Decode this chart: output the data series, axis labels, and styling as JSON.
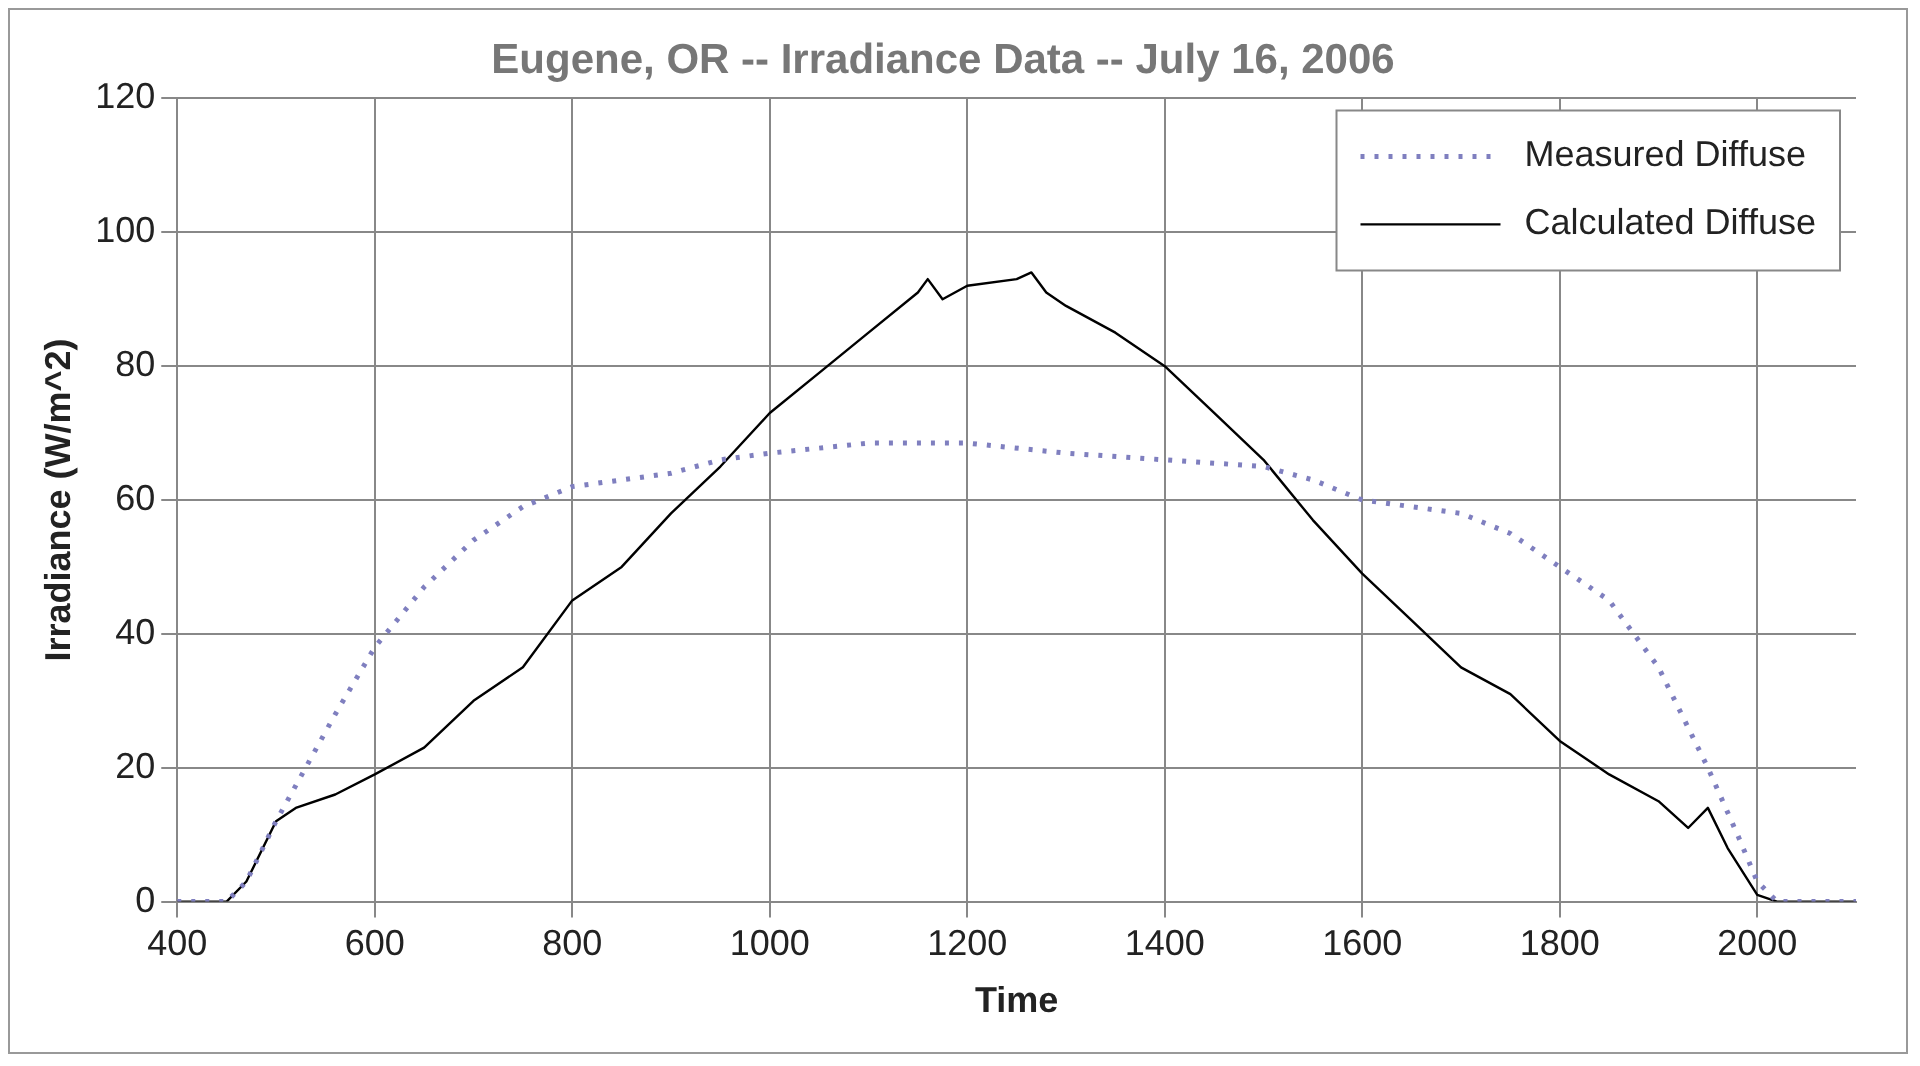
{
  "chart_data": {
    "type": "line",
    "title": "Eugene, OR -- Irradiance Data -- July 16, 2006",
    "xlabel": "Time",
    "ylabel": "Irradiance (W/m^2)",
    "xlim": [
      400,
      2100
    ],
    "xticks": [
      400,
      600,
      800,
      1000,
      1200,
      1400,
      1600,
      1800,
      2000
    ],
    "ylim": [
      0,
      120
    ],
    "yticks": [
      0,
      20,
      40,
      60,
      80,
      100,
      120
    ],
    "grid": true,
    "legend": "top right",
    "marker": "none",
    "series": [
      {
        "name": "Measured Diffuse",
        "color": "#7f7fbf",
        "line_style": "dotted",
        "x": [
          400,
          450,
          470,
          500,
          530,
          560,
          600,
          650,
          700,
          750,
          800,
          850,
          900,
          950,
          1000,
          1100,
          1200,
          1300,
          1400,
          1500,
          1550,
          1600,
          1700,
          1750,
          1800,
          1850,
          1900,
          1950,
          1980,
          2000,
          2020,
          2100
        ],
        "values": [
          0,
          0,
          3,
          12,
          20,
          28,
          38,
          47,
          54,
          59,
          62,
          63,
          64,
          66,
          67,
          68.5,
          68.5,
          67,
          66,
          65,
          63,
          60,
          58,
          55,
          50,
          45,
          35,
          20,
          10,
          3,
          0,
          0
        ]
      },
      {
        "name": "Calculated Diffuse",
        "color": "#000000",
        "line_style": "solid",
        "x": [
          400,
          450,
          470,
          500,
          520,
          560,
          600,
          650,
          700,
          750,
          800,
          850,
          900,
          950,
          1000,
          1050,
          1100,
          1150,
          1160,
          1175,
          1200,
          1250,
          1265,
          1280,
          1300,
          1350,
          1400,
          1450,
          1500,
          1550,
          1600,
          1650,
          1700,
          1750,
          1800,
          1850,
          1900,
          1930,
          1950,
          1970,
          2000,
          2020,
          2100
        ],
        "values": [
          0,
          0,
          3,
          12,
          14,
          16,
          19,
          23,
          30,
          35,
          45,
          50,
          58,
          65,
          73,
          79,
          85,
          91,
          93,
          90,
          92,
          93,
          94,
          91,
          89,
          85,
          80,
          73,
          66,
          57,
          49,
          42,
          35,
          31,
          24,
          19,
          15,
          11,
          14,
          8,
          1,
          0,
          0
        ]
      }
    ]
  }
}
